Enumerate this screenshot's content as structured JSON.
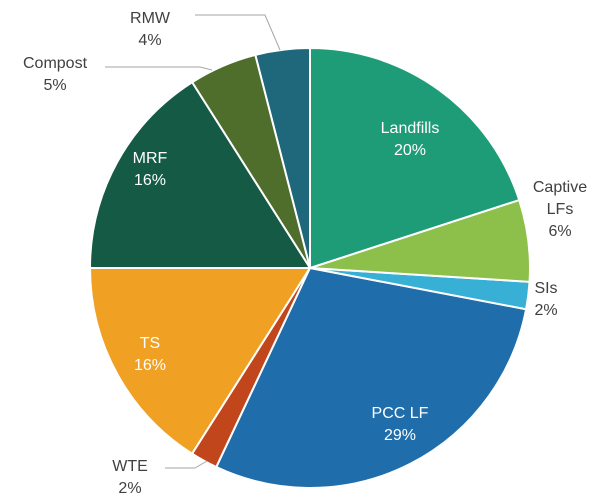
{
  "chart_data": {
    "type": "pie",
    "categories": [
      "Landfills",
      "Captive LFs",
      "SIs",
      "PCC LF",
      "WTE",
      "TS",
      "MRF",
      "Compost",
      "RMW"
    ],
    "values": [
      20,
      6,
      2,
      29,
      2,
      16,
      16,
      5,
      4
    ],
    "value_labels": [
      "20%",
      "6%",
      "2%",
      "29%",
      "2%",
      "16%",
      "16%",
      "5%",
      "4%"
    ],
    "colors": [
      "#1e9c78",
      "#8cc04a",
      "#38b0d6",
      "#1f6dab",
      "#c2461c",
      "#f0a022",
      "#145a45",
      "#4f6e2b",
      "#1f687c"
    ]
  }
}
